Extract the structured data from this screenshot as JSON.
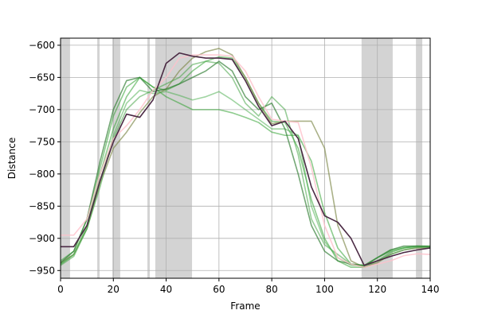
{
  "chart_data": {
    "type": "line",
    "xlabel": "Frame",
    "ylabel": "Distance",
    "x": [
      0,
      5,
      10,
      15,
      20,
      25,
      30,
      35,
      40,
      45,
      50,
      55,
      60,
      65,
      70,
      75,
      80,
      85,
      90,
      95,
      100,
      105,
      110,
      115,
      120,
      125,
      130,
      135,
      140
    ],
    "xlim": [
      0,
      140
    ],
    "xticks": [
      0,
      20,
      40,
      60,
      80,
      100,
      120,
      140
    ],
    "ylim": [
      -962,
      -589
    ],
    "yticks": [
      {
        "value": -950,
        "label": "−950"
      },
      {
        "value": -900,
        "label": "−900"
      },
      {
        "value": -850,
        "label": "−850"
      },
      {
        "value": -800,
        "label": "−800"
      },
      {
        "value": -750,
        "label": "−750"
      },
      {
        "value": -700,
        "label": "−700"
      },
      {
        "value": -650,
        "label": "−650"
      },
      {
        "value": -600,
        "label": "−600"
      }
    ],
    "grid": true,
    "span_color": "#d3d3d3",
    "shaded_spans": [
      [
        0,
        3.6
      ],
      [
        13.9,
        14.8
      ],
      [
        19.6,
        22.6
      ],
      [
        32.9,
        33.8
      ],
      [
        35.9,
        49.8
      ],
      [
        114,
        125.8
      ],
      [
        134.6,
        137
      ]
    ],
    "series": [
      {
        "color": "#2ca02c88",
        "values": [
          -940,
          -925,
          -880,
          -800,
          -730,
          -680,
          -650,
          -665,
          -670,
          -660,
          -640,
          -625,
          -618,
          -620,
          -650,
          -690,
          -718,
          -720,
          -760,
          -840,
          -900,
          -935,
          -945,
          -945,
          -935,
          -922,
          -915,
          -912,
          -912
        ]
      },
      {
        "color": "#7f8a4caa",
        "values": [
          -938,
          -925,
          -885,
          -815,
          -760,
          -735,
          -705,
          -680,
          -668,
          -640,
          -620,
          -610,
          -605,
          -615,
          -650,
          -690,
          -722,
          -718,
          -718,
          -718,
          -760,
          -880,
          -935,
          -945,
          -938,
          -925,
          -918,
          -915,
          -915
        ]
      },
      {
        "color": "#2ca02c88",
        "values": [
          -935,
          -920,
          -870,
          -790,
          -710,
          -665,
          -650,
          -665,
          -680,
          -690,
          -700,
          -700,
          -700,
          -705,
          -712,
          -720,
          -735,
          -740,
          -740,
          -780,
          -860,
          -915,
          -940,
          -943,
          -930,
          -920,
          -915,
          -913,
          -913
        ]
      },
      {
        "color": "#3fa23f88",
        "values": [
          -942,
          -928,
          -885,
          -810,
          -745,
          -700,
          -680,
          -670,
          -660,
          -650,
          -630,
          -625,
          -628,
          -650,
          -690,
          -710,
          -680,
          -700,
          -770,
          -870,
          -910,
          -925,
          -940,
          -942,
          -935,
          -925,
          -918,
          -914,
          -914
        ]
      },
      {
        "color": "#4caf5088",
        "values": [
          -940,
          -925,
          -885,
          -820,
          -740,
          -690,
          -670,
          -675,
          -672,
          -678,
          -685,
          -680,
          -672,
          -685,
          -700,
          -715,
          -730,
          -730,
          -740,
          -850,
          -905,
          -930,
          -942,
          -943,
          -930,
          -918,
          -914,
          -912,
          -912
        ]
      },
      {
        "color": "#2e7d32aa",
        "values": [
          -938,
          -920,
          -870,
          -780,
          -700,
          -655,
          -650,
          -672,
          -668,
          -660,
          -650,
          -640,
          -625,
          -640,
          -680,
          -700,
          -690,
          -730,
          -800,
          -880,
          -920,
          -935,
          -940,
          -942,
          -930,
          -918,
          -912,
          -912,
          -913
        ]
      },
      {
        "color": "#ffc0cbcc",
        "values": [
          -895,
          -895,
          -870,
          -800,
          -745,
          -725,
          -700,
          -670,
          -650,
          -620,
          -615,
          -615,
          -615,
          -617,
          -640,
          -680,
          -715,
          -718,
          -720,
          -790,
          -880,
          -930,
          -940,
          -945,
          -940,
          -935,
          -927,
          -924,
          -925
        ]
      },
      {
        "color": "#4b2a44",
        "values": [
          -913,
          -913,
          -880,
          -810,
          -750,
          -707,
          -712,
          -685,
          -628,
          -612,
          -617,
          -620,
          -620,
          -622,
          -655,
          -695,
          -725,
          -718,
          -745,
          -820,
          -865,
          -875,
          -900,
          -942,
          -935,
          -928,
          -922,
          -918,
          -915
        ]
      }
    ]
  }
}
